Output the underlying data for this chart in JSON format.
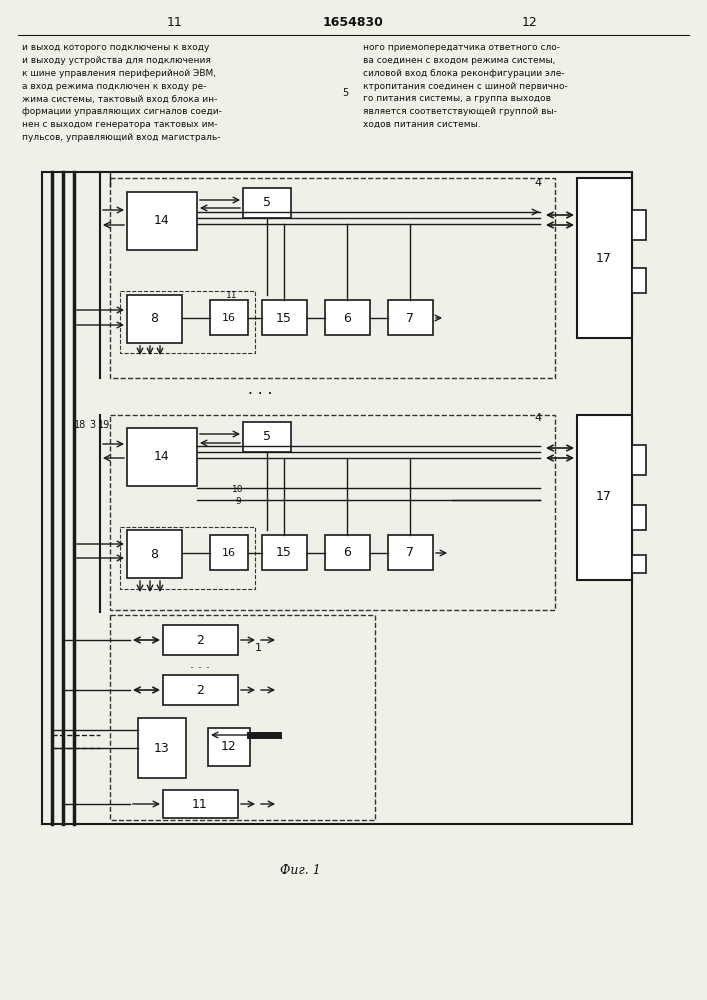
{
  "title_center": "1654830",
  "page_left": "11",
  "page_right": "12",
  "fig_label": "Фиг. 1",
  "bg_color": "#f0efe8",
  "line_color": "#1a1a1a",
  "dashed_line_color": "#333333",
  "block_fill": "#ffffff",
  "text_color": "#111111"
}
